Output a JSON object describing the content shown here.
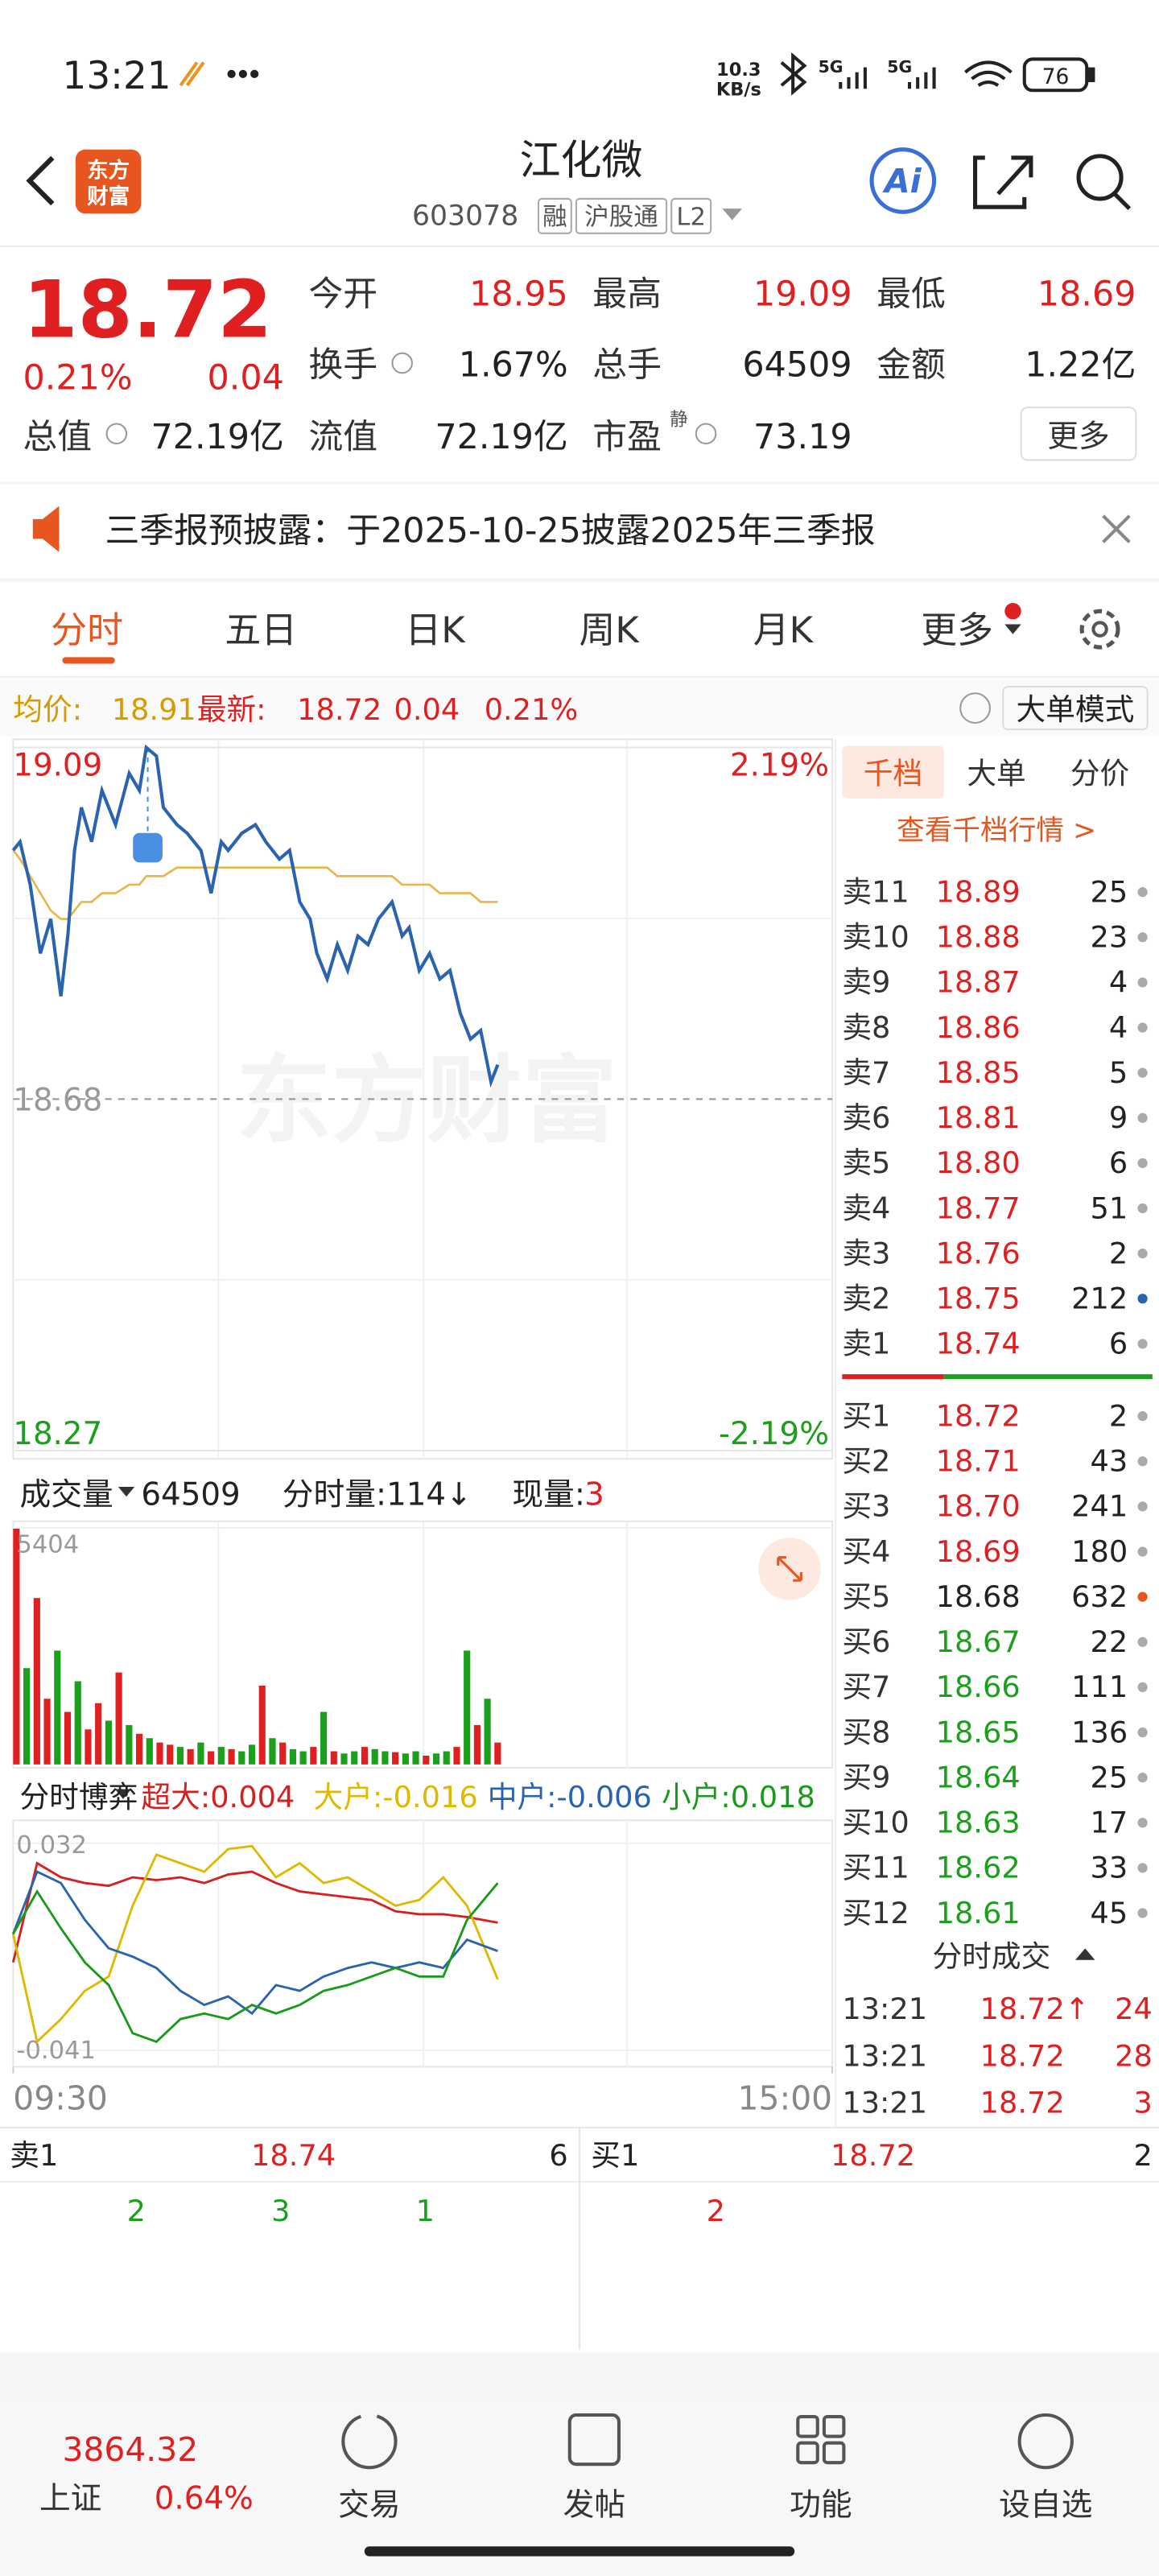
{
  "status_bar": {
    "time": "13:21",
    "speed": [
      "10.3",
      "KB/s"
    ],
    "network": [
      "5G",
      "5G"
    ],
    "battery": "76"
  },
  "header": {
    "logo": [
      "东方",
      "财富"
    ],
    "title": "江化微",
    "code": "603078",
    "tags": [
      "融",
      "沪股通",
      "L2"
    ],
    "ai": "Ai"
  },
  "quote": {
    "price": "18.72",
    "change_pct": "0.21%",
    "change": "0.04",
    "pe_note": "静",
    "more_button": "更多",
    "fields": [
      {
        "label": "今开",
        "value": "18.95",
        "color": "#e02020"
      },
      {
        "label": "最高",
        "value": "19.09",
        "color": "#e02020"
      },
      {
        "label": "最低",
        "value": "18.69",
        "color": "#e02020"
      },
      {
        "label": "换手",
        "value": "1.67%",
        "color": "#222222"
      },
      {
        "label": "总手",
        "value": "64509",
        "color": "#222222"
      },
      {
        "label": "金额",
        "value": "1.22亿",
        "color": "#222222"
      },
      {
        "label": "总值",
        "value": "72.19亿",
        "color": "#222222"
      },
      {
        "label": "流值",
        "value": "72.19亿",
        "color": "#222222"
      },
      {
        "label": "市盈",
        "value": "73.19",
        "color": "#222222"
      }
    ]
  },
  "notice": "三季报预披露：于2025-10-25披露2025年三季报",
  "tabs": {
    "items": [
      "分时",
      "五日",
      "日K",
      "周K",
      "月K",
      "更多"
    ],
    "active": 0
  },
  "info_bar": {
    "avg_label": "均价:",
    "avg": "18.91",
    "latest_label": "最新:",
    "latest": "18.72",
    "change": "0.04",
    "change_pct": "0.21%",
    "mode_button": "大单模式"
  },
  "chart_data": [
    {
      "type": "line",
      "watermark": "东方财富",
      "xlim": [
        0,
        240
      ],
      "ylim": [
        18.27,
        19.09
      ],
      "yticks": [
        19.09,
        18.68,
        18.27
      ],
      "y2lim": [
        -2.19,
        2.19
      ],
      "y2ticks": [
        {
          "value": 2.19,
          "label": "2.19%"
        },
        {
          "value": -2.19,
          "label": "-2.19%"
        }
      ],
      "x": [
        0,
        2,
        5,
        8,
        11,
        14,
        16,
        18,
        20,
        23,
        26,
        30,
        34,
        37,
        39,
        42,
        44,
        48,
        51,
        55,
        58,
        61,
        63,
        67,
        71,
        74,
        78,
        81,
        84,
        87,
        89,
        92,
        95,
        98,
        101,
        104,
        107,
        111,
        114,
        116,
        119,
        122,
        125,
        128,
        131,
        134,
        137,
        140,
        142
      ],
      "series": [
        {
          "color": "#2a63b0",
          "values": [
            18.97,
            18.98,
            18.93,
            18.85,
            18.89,
            18.8,
            18.87,
            18.97,
            19.02,
            18.98,
            19.04,
            19.0,
            19.06,
            19.04,
            19.09,
            19.08,
            19.02,
            19.0,
            18.99,
            18.97,
            18.92,
            18.98,
            18.97,
            18.99,
            19.0,
            18.98,
            18.96,
            18.97,
            18.91,
            18.89,
            18.85,
            18.82,
            18.86,
            18.83,
            18.87,
            18.86,
            18.89,
            18.91,
            18.87,
            18.88,
            18.83,
            18.85,
            18.82,
            18.83,
            18.78,
            18.75,
            18.76,
            18.7,
            18.72
          ]
        },
        {
          "color": "#e8b64a",
          "values": [
            18.97,
            18.96,
            18.94,
            18.92,
            18.9,
            18.89,
            18.89,
            18.9,
            18.91,
            18.91,
            18.92,
            18.92,
            18.93,
            18.93,
            18.94,
            18.94,
            18.94,
            18.95,
            18.95,
            18.95,
            18.95,
            18.95,
            18.95,
            18.95,
            18.95,
            18.95,
            18.95,
            18.95,
            18.95,
            18.95,
            18.95,
            18.95,
            18.94,
            18.94,
            18.94,
            18.94,
            18.94,
            18.94,
            18.93,
            18.93,
            18.93,
            18.93,
            18.92,
            18.92,
            18.92,
            18.92,
            18.91,
            18.91,
            18.91
          ]
        }
      ]
    },
    {
      "type": "bar",
      "xlim": [
        0,
        240
      ],
      "ylim": [
        0,
        5404
      ],
      "yticks": [
        5404
      ],
      "x": [
        0,
        3,
        6,
        9,
        12,
        15,
        18,
        21,
        24,
        27,
        30,
        33,
        36,
        39,
        42,
        45,
        48,
        51,
        54,
        57,
        60,
        63,
        66,
        69,
        72,
        75,
        78,
        81,
        84,
        87,
        90,
        93,
        96,
        99,
        102,
        105,
        108,
        111,
        114,
        117,
        120,
        123,
        126,
        129,
        132,
        135,
        138,
        141
      ],
      "values": [
        5404,
        2200,
        3800,
        1500,
        2600,
        1200,
        1900,
        800,
        1400,
        1000,
        2100,
        900,
        700,
        600,
        500,
        450,
        400,
        350,
        500,
        300,
        400,
        350,
        300,
        450,
        1800,
        600,
        500,
        350,
        300,
        400,
        1200,
        300,
        250,
        300,
        400,
        350,
        300,
        280,
        250,
        300,
        200,
        250,
        300,
        400,
        2600,
        900,
        1500,
        500
      ],
      "colors": [
        "#e02020",
        "#1aa01a",
        "#e02020",
        "#e02020",
        "#1aa01a",
        "#e02020",
        "#1aa01a",
        "#e02020",
        "#e02020",
        "#1aa01a",
        "#e02020",
        "#1aa01a",
        "#e02020",
        "#1aa01a",
        "#e02020",
        "#e02020",
        "#1aa01a",
        "#e02020",
        "#1aa01a",
        "#e02020",
        "#1aa01a",
        "#e02020",
        "#1aa01a",
        "#1aa01a",
        "#e02020",
        "#1aa01a",
        "#e02020",
        "#1aa01a",
        "#1aa01a",
        "#e02020",
        "#1aa01a",
        "#e02020",
        "#1aa01a",
        "#1aa01a",
        "#e02020",
        "#1aa01a",
        "#1aa01a",
        "#e02020",
        "#1aa01a",
        "#1aa01a",
        "#e02020",
        "#1aa01a",
        "#1aa01a",
        "#e02020",
        "#1aa01a",
        "#e02020",
        "#1aa01a",
        "#e02020"
      ]
    },
    {
      "type": "line",
      "title": "分时博弈",
      "xlim": [
        0,
        240
      ],
      "xticks": [
        {
          "value": 0,
          "label": "09:30"
        },
        {
          "value": 240,
          "label": "15:00"
        }
      ],
      "ylim": [
        -0.041,
        0.032
      ],
      "yticks": [
        0.032,
        -0.041
      ],
      "x": [
        0,
        7,
        14,
        21,
        28,
        35,
        42,
        49,
        56,
        63,
        70,
        77,
        84,
        91,
        98,
        105,
        112,
        119,
        126,
        133,
        142
      ],
      "series": [
        {
          "name": "超大:0.004",
          "color": "#d62020",
          "values": [
            -0.01,
            0.025,
            0.02,
            0.018,
            0.017,
            0.02,
            0.019,
            0.02,
            0.018,
            0.021,
            0.022,
            0.018,
            0.015,
            0.014,
            0.013,
            0.012,
            0.008,
            0.007,
            0.007,
            0.006,
            0.004
          ]
        },
        {
          "name": "大户:-0.016",
          "color": "#e0b800",
          "values": [
            0.0,
            -0.038,
            -0.03,
            -0.02,
            -0.015,
            0.01,
            0.028,
            0.025,
            0.022,
            0.03,
            0.031,
            0.02,
            0.025,
            0.018,
            0.02,
            0.015,
            0.01,
            0.012,
            0.02,
            0.01,
            -0.016
          ]
        },
        {
          "name": "中户:-0.006",
          "color": "#2a63b0",
          "values": [
            0.0,
            0.022,
            0.018,
            0.005,
            -0.005,
            -0.008,
            -0.012,
            -0.02,
            -0.025,
            -0.022,
            -0.028,
            -0.018,
            -0.02,
            -0.015,
            -0.012,
            -0.01,
            -0.012,
            -0.01,
            -0.012,
            -0.002,
            -0.006
          ]
        },
        {
          "name": "小户:0.018",
          "color": "#1a9a1a",
          "values": [
            0.0,
            0.015,
            0.002,
            -0.01,
            -0.018,
            -0.035,
            -0.038,
            -0.03,
            -0.028,
            -0.03,
            -0.025,
            -0.028,
            -0.025,
            -0.02,
            -0.018,
            -0.015,
            -0.012,
            -0.015,
            -0.015,
            0.005,
            0.018
          ]
        }
      ]
    }
  ],
  "volume_header": {
    "label": "成交量",
    "total": "64509",
    "minute_volume": "分时量:114↓",
    "current_label": "现量:",
    "current": "3"
  },
  "order_book": {
    "tabs": [
      "千档",
      "大单",
      "分价"
    ],
    "link": "查看千档行情 >",
    "asks": [
      {
        "label": "卖11",
        "price": "18.89",
        "volume": "25",
        "color": "#e02020",
        "dot": "#aaaaaa"
      },
      {
        "label": "卖10",
        "price": "18.88",
        "volume": "23",
        "color": "#e02020",
        "dot": "#aaaaaa"
      },
      {
        "label": "卖9",
        "price": "18.87",
        "volume": "4",
        "color": "#e02020",
        "dot": "#aaaaaa"
      },
      {
        "label": "卖8",
        "price": "18.86",
        "volume": "4",
        "color": "#e02020",
        "dot": "#aaaaaa"
      },
      {
        "label": "卖7",
        "price": "18.85",
        "volume": "5",
        "color": "#e02020",
        "dot": "#aaaaaa"
      },
      {
        "label": "卖6",
        "price": "18.81",
        "volume": "9",
        "color": "#e02020",
        "dot": "#aaaaaa"
      },
      {
        "label": "卖5",
        "price": "18.80",
        "volume": "6",
        "color": "#e02020",
        "dot": "#aaaaaa"
      },
      {
        "label": "卖4",
        "price": "18.77",
        "volume": "51",
        "color": "#e02020",
        "dot": "#aaaaaa"
      },
      {
        "label": "卖3",
        "price": "18.76",
        "volume": "2",
        "color": "#e02020",
        "dot": "#aaaaaa"
      },
      {
        "label": "卖2",
        "price": "18.75",
        "volume": "212",
        "color": "#e02020",
        "dot": "#2a63b0"
      },
      {
        "label": "卖1",
        "price": "18.74",
        "volume": "6",
        "color": "#e02020",
        "dot": "#aaaaaa"
      }
    ],
    "bids": [
      {
        "label": "买1",
        "price": "18.72",
        "volume": "2",
        "color": "#e02020",
        "dot": "#aaaaaa"
      },
      {
        "label": "买2",
        "price": "18.71",
        "volume": "43",
        "color": "#e02020",
        "dot": "#aaaaaa"
      },
      {
        "label": "买3",
        "price": "18.70",
        "volume": "241",
        "color": "#e02020",
        "dot": "#aaaaaa"
      },
      {
        "label": "买4",
        "price": "18.69",
        "volume": "180",
        "color": "#e02020",
        "dot": "#aaaaaa"
      },
      {
        "label": "买5",
        "price": "18.68",
        "volume": "632",
        "color": "#222222",
        "dot": "#e8561f"
      },
      {
        "label": "买6",
        "price": "18.67",
        "volume": "22",
        "color": "#1aa01a",
        "dot": "#aaaaaa"
      },
      {
        "label": "买7",
        "price": "18.66",
        "volume": "111",
        "color": "#1aa01a",
        "dot": "#aaaaaa"
      },
      {
        "label": "买8",
        "price": "18.65",
        "volume": "136",
        "color": "#1aa01a",
        "dot": "#aaaaaa"
      },
      {
        "label": "买9",
        "price": "18.64",
        "volume": "25",
        "color": "#1aa01a",
        "dot": "#aaaaaa"
      },
      {
        "label": "买10",
        "price": "18.63",
        "volume": "17",
        "color": "#1aa01a",
        "dot": "#aaaaaa"
      },
      {
        "label": "买11",
        "price": "18.62",
        "volume": "33",
        "color": "#1aa01a",
        "dot": "#aaaaaa"
      },
      {
        "label": "买12",
        "price": "18.61",
        "volume": "45",
        "color": "#1aa01a",
        "dot": "#aaaaaa"
      }
    ]
  },
  "trades": {
    "title": "分时成交",
    "rows": [
      [
        "13:21",
        "18.72↑",
        "24"
      ],
      [
        "13:21",
        "18.72",
        "28"
      ],
      [
        "13:21",
        "18.72",
        "3"
      ]
    ]
  },
  "queue": {
    "ask": {
      "label": "卖1",
      "price": "18.74",
      "volume": "6",
      "orders": [
        "2",
        "3",
        "1"
      ]
    },
    "bid": {
      "label": "买1",
      "price": "18.72",
      "volume": "2",
      "orders": [
        "2"
      ]
    }
  },
  "bottom_nav": {
    "index_value": "3864.32",
    "index_name": "上证",
    "index_change": "0.64%",
    "items": [
      "交易",
      "发帖",
      "功能",
      "设自选"
    ]
  }
}
